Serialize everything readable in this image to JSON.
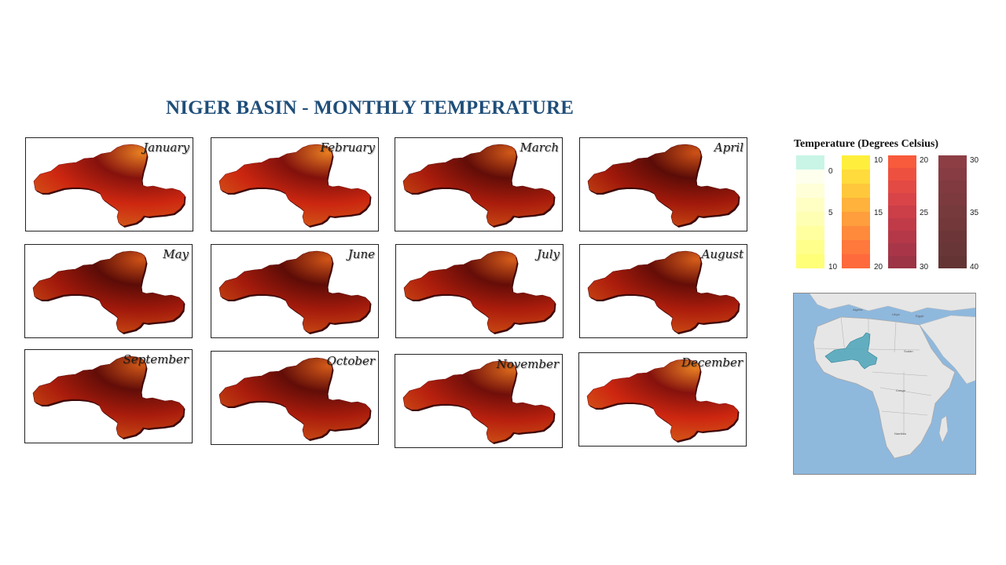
{
  "title": "NIGER BASIN - MONTHLY TEMPERATURE",
  "months": [
    {
      "label": "January",
      "warm": 0.75
    },
    {
      "label": "February",
      "warm": 0.7
    },
    {
      "label": "March",
      "warm": 0.25
    },
    {
      "label": "April",
      "warm": 0.15
    },
    {
      "label": "May",
      "warm": 0.15
    },
    {
      "label": "June",
      "warm": 0.2
    },
    {
      "label": "July",
      "warm": 0.3
    },
    {
      "label": "August",
      "warm": 0.3
    },
    {
      "label": "September",
      "warm": 0.25
    },
    {
      "label": "October",
      "warm": 0.25
    },
    {
      "label": "November",
      "warm": 0.45
    },
    {
      "label": "December",
      "warm": 0.75
    }
  ],
  "legend": {
    "title": "Temperature (Degrees Celsius)",
    "columns": [
      {
        "ticks": [
          "0",
          "5",
          "10"
        ],
        "colors": [
          "#ffffee",
          "#ffffd8",
          "#ffffc4",
          "#ffffb4",
          "#ffffa0",
          "#ffff8c",
          "#ffff78"
        ],
        "top_color": "#c8f5e6"
      },
      {
        "ticks": [
          "10",
          "15",
          "20"
        ],
        "colors": [
          "#ffef3c",
          "#ffdb3c",
          "#ffc83c",
          "#ffb23c",
          "#ff9e3c",
          "#ff8a3c",
          "#ff783c",
          "#ff6a3c"
        ]
      },
      {
        "ticks": [
          "20",
          "25",
          "30"
        ],
        "colors": [
          "#f85a3c",
          "#ee5040",
          "#e44a44",
          "#d84448",
          "#cc3e48",
          "#c03a48",
          "#b43848",
          "#a83648",
          "#9c3446"
        ]
      },
      {
        "ticks": [
          "30",
          "35",
          "40"
        ],
        "colors": [
          "#8c3e44",
          "#863c42",
          "#803a40",
          "#7c3a3e",
          "#763a3c",
          "#72383a",
          "#6c3638",
          "#683636",
          "#643434"
        ]
      }
    ]
  },
  "inset": {
    "basin_color": "#4aa3b8"
  }
}
